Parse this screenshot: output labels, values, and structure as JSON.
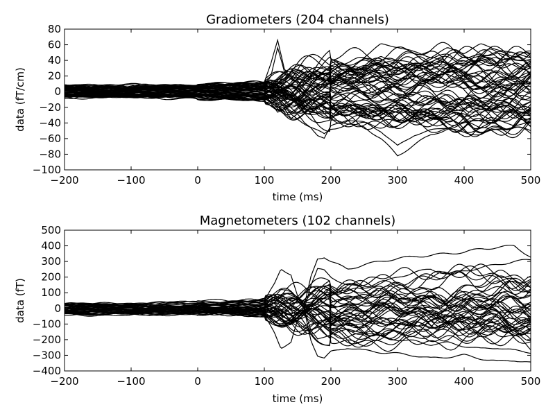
{
  "chart_data": [
    {
      "type": "line",
      "title": "Gradiometers (204 channels)",
      "xlabel": "time (ms)",
      "ylabel": "data (fT/cm)",
      "xlim": [
        -200,
        500
      ],
      "ylim": [
        -100,
        80
      ],
      "xticks": [
        -200,
        -100,
        0,
        100,
        200,
        300,
        400,
        500
      ],
      "yticks": [
        -100,
        -80,
        -60,
        -40,
        -20,
        0,
        20,
        40,
        60,
        80
      ],
      "xtick_labels": [
        "−200",
        "−100",
        "0",
        "100",
        "200",
        "300",
        "400",
        "500"
      ],
      "ytick_labels": [
        "−100",
        "−80",
        "−60",
        "−40",
        "−20",
        "0",
        "20",
        "40",
        "60",
        "80"
      ],
      "grid": false,
      "line_color": "#000000",
      "n_channels": 204,
      "series": [
        {
          "x": [
            -200,
            -150,
            -100,
            -50,
            0,
            50,
            100,
            110,
            120,
            130,
            140,
            150,
            160,
            170,
            180,
            190,
            200,
            225,
            250,
            275,
            300,
            325,
            350,
            375,
            400,
            425,
            450,
            475,
            500
          ],
          "values": [
            7,
            5,
            4,
            6,
            8,
            10,
            12,
            35,
            65,
            30,
            20,
            25,
            18,
            12,
            5,
            8,
            12,
            20,
            30,
            45,
            40,
            35,
            42,
            48,
            38,
            45,
            50,
            40,
            42
          ]
        },
        {
          "x": [
            -200,
            -150,
            -100,
            -50,
            0,
            50,
            100,
            110,
            120,
            130,
            140,
            150,
            160,
            170,
            180,
            190,
            200,
            225,
            250,
            275,
            300,
            325,
            350,
            375,
            400,
            425,
            450,
            475,
            500
          ],
          "values": [
            -5,
            -6,
            -3,
            -4,
            -6,
            -8,
            -10,
            -15,
            -25,
            -20,
            -35,
            -30,
            -40,
            -45,
            -55,
            -60,
            -45,
            -35,
            -40,
            -50,
            -70,
            -55,
            -50,
            -45,
            -40,
            -35,
            -38,
            -42,
            -40
          ]
        },
        {
          "x": [
            -200,
            -150,
            -100,
            -50,
            0,
            50,
            100,
            110,
            120,
            130,
            140,
            150,
            160,
            170,
            180,
            190,
            200,
            225,
            250,
            275,
            300,
            325,
            350,
            375,
            400,
            425,
            450,
            475,
            500
          ],
          "values": [
            -8,
            -5,
            -4,
            -5,
            -4,
            -6,
            -8,
            -12,
            -15,
            -20,
            -30,
            -35,
            -40,
            -45,
            -50,
            -55,
            -48,
            -42,
            -45,
            -60,
            -82,
            -68,
            -55,
            -48,
            -52,
            -55,
            -48,
            -45,
            -50
          ]
        },
        {
          "x": [
            -200,
            -150,
            -100,
            -50,
            0,
            50,
            100,
            110,
            120,
            130,
            140,
            150,
            160,
            170,
            180,
            190,
            200,
            225,
            250,
            275,
            300,
            325,
            350,
            375,
            400,
            425,
            450,
            475,
            500
          ],
          "values": [
            5,
            6,
            3,
            4,
            5,
            7,
            9,
            20,
            55,
            25,
            30,
            18,
            15,
            10,
            8,
            10,
            15,
            25,
            45,
            60,
            58,
            50,
            45,
            55,
            50,
            60,
            55,
            48,
            45
          ]
        }
      ]
    },
    {
      "type": "line",
      "title": "Magnetometers (102 channels)",
      "xlabel": "time (ms)",
      "ylabel": "data (fT)",
      "xlim": [
        -200,
        500
      ],
      "ylim": [
        -400,
        500
      ],
      "xticks": [
        -200,
        -100,
        0,
        100,
        200,
        300,
        400,
        500
      ],
      "yticks": [
        -400,
        -300,
        -200,
        -100,
        0,
        100,
        200,
        300,
        400,
        500
      ],
      "xtick_labels": [
        "−200",
        "−100",
        "0",
        "100",
        "200",
        "300",
        "400",
        "500"
      ],
      "ytick_labels": [
        "−400",
        "−300",
        "−200",
        "−100",
        "0",
        "100",
        "200",
        "300",
        "400",
        "500"
      ],
      "grid": false,
      "line_color": "#000000",
      "n_channels": 102,
      "series": [
        {
          "x": [
            -200,
            -150,
            -100,
            -50,
            0,
            50,
            100,
            115,
            125,
            140,
            150,
            160,
            170,
            180,
            190,
            200,
            225,
            250,
            275,
            300,
            325,
            350,
            375,
            400,
            425,
            450,
            475,
            500
          ],
          "values": [
            30,
            25,
            20,
            25,
            30,
            40,
            50,
            150,
            250,
            220,
            80,
            10,
            200,
            320,
            330,
            300,
            250,
            280,
            300,
            320,
            330,
            340,
            350,
            360,
            380,
            390,
            400,
            330
          ]
        },
        {
          "x": [
            -200,
            -150,
            -100,
            -50,
            0,
            50,
            100,
            115,
            125,
            140,
            150,
            160,
            170,
            180,
            190,
            200,
            225,
            250,
            275,
            300,
            325,
            350,
            375,
            400,
            425,
            450,
            475,
            500
          ],
          "values": [
            -30,
            -25,
            -20,
            -25,
            -30,
            -40,
            -50,
            -150,
            -250,
            -220,
            -80,
            -10,
            -200,
            -300,
            -320,
            -280,
            -250,
            -270,
            -280,
            -290,
            -300,
            -320,
            -310,
            -300,
            -320,
            -340,
            -330,
            -350
          ]
        },
        {
          "x": [
            -200,
            -150,
            -100,
            -50,
            0,
            50,
            100,
            115,
            125,
            140,
            150,
            160,
            170,
            180,
            190,
            200,
            225,
            250,
            275,
            300,
            325,
            350,
            375,
            400,
            425,
            450,
            475,
            500
          ],
          "values": [
            20,
            15,
            10,
            12,
            15,
            25,
            30,
            80,
            120,
            100,
            50,
            5,
            150,
            250,
            240,
            200,
            150,
            130,
            160,
            200,
            230,
            250,
            220,
            240,
            260,
            280,
            300,
            310
          ]
        },
        {
          "x": [
            -200,
            -150,
            -100,
            -50,
            0,
            50,
            100,
            115,
            125,
            140,
            150,
            160,
            170,
            180,
            190,
            200,
            225,
            250,
            275,
            300,
            325,
            350,
            375,
            400,
            425,
            450,
            475,
            500
          ],
          "values": [
            -20,
            -15,
            -10,
            -12,
            -15,
            -25,
            -30,
            -80,
            -120,
            -100,
            -50,
            -5,
            -150,
            -200,
            -180,
            -160,
            -140,
            -150,
            -180,
            -200,
            -210,
            -230,
            -220,
            -240,
            -260,
            -250,
            -270,
            -280
          ]
        }
      ]
    }
  ]
}
